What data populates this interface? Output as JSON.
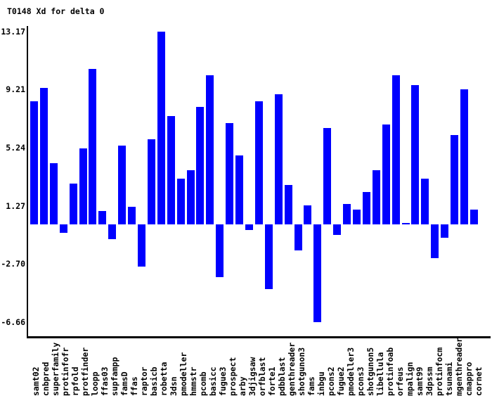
{
  "title": "T0148 Xd for delta 0",
  "colors": {
    "bar": "#0000ff",
    "axis": "#000000",
    "text": "#000000",
    "background": "#ffffff"
  },
  "chart_data": {
    "type": "bar",
    "title": "T0148 Xd for delta 0",
    "categories": [
      "samt02",
      "cnbpred",
      "superfamily",
      "protinfofr",
      "rpfold",
      "protfinder",
      "loopp",
      "ffas03",
      "supfampp",
      "famsD",
      "ffas",
      "raptor",
      "basicb",
      "robetta",
      "3dsn",
      "pmodeller",
      "hmmstr",
      "pcomb",
      "basicc",
      "fugue3",
      "prospect",
      "arby",
      "3djigsaw",
      "orfblast",
      "forte1",
      "pdbblast",
      "genthreader",
      "shotgunon3",
      "fams",
      "inbgu",
      "pcons2",
      "fugue2",
      "pmodeller3",
      "pcons3",
      "shotgunon5",
      "libellula",
      "protinfoab",
      "orfeus",
      "mpalign",
      "samt99",
      "3dpssm",
      "protinfocm",
      "tsunami",
      "mgenthreader",
      "cmappro",
      "cornet"
    ],
    "values": [
      8.4,
      9.3,
      4.2,
      -0.6,
      2.8,
      5.2,
      10.6,
      0.9,
      -1.0,
      5.4,
      1.2,
      -2.9,
      5.8,
      13.17,
      7.4,
      3.1,
      3.7,
      8.0,
      10.2,
      -3.6,
      6.9,
      4.7,
      -0.4,
      8.4,
      -4.4,
      8.9,
      2.7,
      -1.8,
      1.3,
      -6.66,
      6.6,
      -0.7,
      1.4,
      1.0,
      2.2,
      3.7,
      6.8,
      10.2,
      0.1,
      9.5,
      3.1,
      -2.3,
      -0.9,
      6.1,
      9.2,
      1.0
    ],
    "xlabel": "",
    "ylabel": "",
    "ytick_labels": [
      "13.17",
      "9.21",
      "5.24",
      "1.27",
      "-2.70",
      "-6.66"
    ],
    "ytick_values": [
      13.17,
      9.21,
      5.24,
      1.27,
      -2.7,
      -6.66
    ],
    "ylim": [
      -6.66,
      13.17
    ],
    "grid": false,
    "legend": false,
    "bar_color": "#0000ff"
  }
}
